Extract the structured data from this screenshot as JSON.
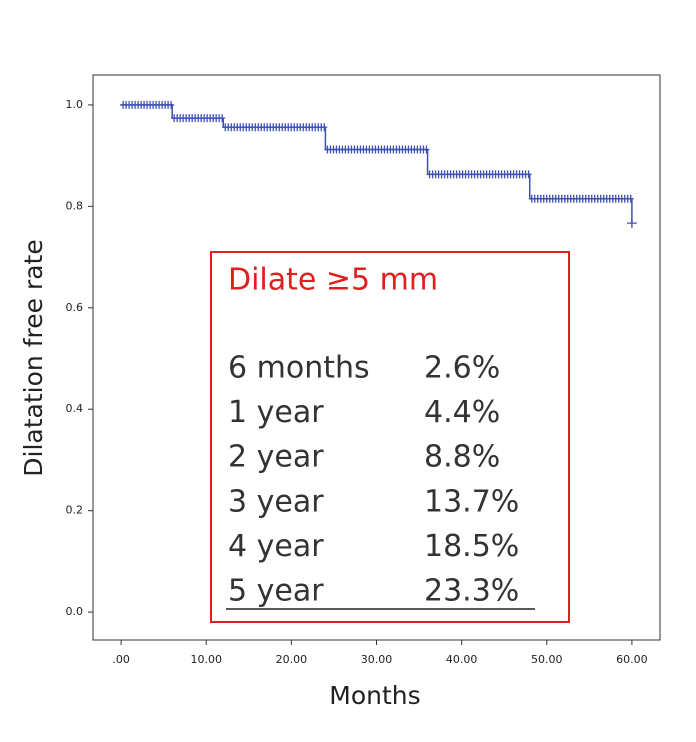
{
  "chart_data": {
    "type": "line",
    "step": true,
    "x": [
      0,
      6,
      12,
      24,
      36,
      48,
      60
    ],
    "series": [
      {
        "color": "#3f51b5",
        "values": [
          1.0,
          0.974,
          0.956,
          0.912,
          0.863,
          0.815,
          0.767
        ]
      }
    ],
    "xlabel": "Months",
    "ylabel": "Dilatation free rate",
    "xlim": [
      -3.3,
      63.3
    ],
    "xticks": [
      {
        "value": 0,
        "label": ".00"
      },
      {
        "value": 10,
        "label": "10.00"
      },
      {
        "value": 20,
        "label": "20.00"
      },
      {
        "value": 30,
        "label": "30.00"
      },
      {
        "value": 40,
        "label": "40.00"
      },
      {
        "value": 50,
        "label": "50.00"
      },
      {
        "value": 60,
        "label": "60.00"
      }
    ],
    "ylim": [
      -0.055,
      1.059
    ],
    "yticks": [
      {
        "value": 0,
        "label": "0.0"
      },
      {
        "value": 0.2,
        "label": "0.2"
      },
      {
        "value": 0.4,
        "label": "0.4"
      },
      {
        "value": 0.6,
        "label": "0.6"
      },
      {
        "value": 0.8,
        "label": "0.8"
      },
      {
        "value": 1.0,
        "label": "1.0"
      }
    ],
    "annotation": {
      "title": "Dilate ≥5 mm",
      "color": "#e0201f",
      "rows": [
        [
          "6 months",
          "2.6%"
        ],
        [
          "1 year",
          "4.4%"
        ],
        [
          "2 year",
          "8.8%"
        ],
        [
          "3 year",
          "13.7%"
        ],
        [
          "4 year",
          "18.5%"
        ],
        [
          "5 year",
          "23.3%"
        ]
      ]
    }
  }
}
